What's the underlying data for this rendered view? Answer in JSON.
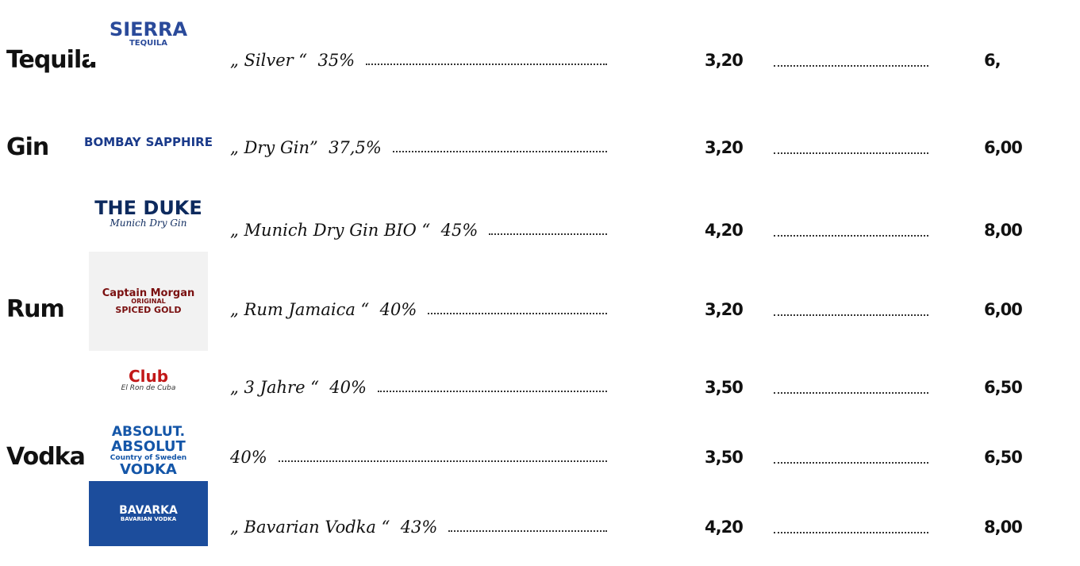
{
  "rows": [
    {
      "category": "Tequila",
      "logo": [
        "SIERRA",
        "TEQUILA"
      ],
      "description": "„ Silver “  35%",
      "price_small": "3,20",
      "price_large": "6,"
    },
    {
      "category": "Gin",
      "logo": [
        "BOMBAY",
        "SAPPHIRE"
      ],
      "description": "„ Dry Gin”  37,5%",
      "price_small": "3,20",
      "price_large": "6,00"
    },
    {
      "logo": [
        "THE DUKE",
        "Munich Dry Gin"
      ],
      "description": "„ Munich Dry Gin BIO “  45%",
      "price_small": "4,20",
      "price_large": "8,00"
    },
    {
      "category": "Rum",
      "logo": [
        "Captain Morgan",
        "ORIGINAL",
        "SPICED GOLD"
      ],
      "description": "„ Rum Jamaica “  40%",
      "price_small": "3,20",
      "price_large": "6,00"
    },
    {
      "logo": [
        "Club",
        "El Ron de Cuba"
      ],
      "description": "„ 3 Jahre “  40%",
      "price_small": "3,50",
      "price_large": "6,50"
    },
    {
      "category": "Vodka",
      "logo": [
        "ABSOLUT.",
        "ABSOLUT",
        "Country of Sweden",
        "VODKA"
      ],
      "description": "40%",
      "price_small": "3,50",
      "price_large": "6,50"
    },
    {
      "logo": [
        "BAVARKA",
        "BAVARIAN VODKA"
      ],
      "description": "„ Bavarian Vodka “  43%",
      "price_small": "4,20",
      "price_large": "8,00"
    }
  ]
}
